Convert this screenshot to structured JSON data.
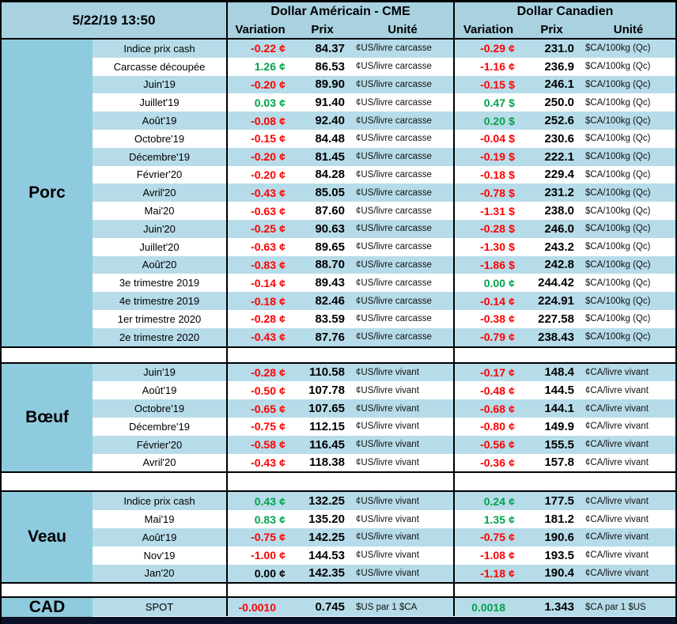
{
  "header": {
    "timestamp": "5/22/19 13:50",
    "us_title": "Dollar Américain - CME",
    "ca_title": "Dollar Canadien",
    "col_variation": "Variation",
    "col_prix": "Prix",
    "col_unite": "Unité"
  },
  "colors": {
    "negative": "#FF0000",
    "positive": "#00A24A",
    "neutral": "#000000",
    "header_bg": "#A9D2E1",
    "section_bg": "#8FCBDE",
    "stripe_bg": "#B7DCE9",
    "border": "#000000",
    "bottom_bar": "#0B1126"
  },
  "sections": [
    {
      "label": "Porc",
      "solid": false,
      "rows": [
        {
          "label": "Indice prix cash",
          "us": {
            "var": "-0.22",
            "sfx": "¢",
            "color": "negative",
            "prix": "84.37",
            "unit": "¢US/livre carcasse"
          },
          "ca": {
            "var": "-0.29",
            "sfx": "¢",
            "color": "negative",
            "prix": "231.0",
            "unit": "$CA/100kg (Qc)"
          }
        },
        {
          "label": "Carcasse découpée",
          "us": {
            "var": "1.26",
            "sfx": "¢",
            "color": "positive",
            "prix": "86.53",
            "unit": "¢US/livre carcasse"
          },
          "ca": {
            "var": "-1.16",
            "sfx": "¢",
            "color": "negative",
            "prix": "236.9",
            "unit": "$CA/100kg (Qc)"
          }
        },
        {
          "label": "Juin'19",
          "us": {
            "var": "-0.20",
            "sfx": "¢",
            "color": "negative",
            "prix": "89.90",
            "unit": "¢US/livre carcasse"
          },
          "ca": {
            "var": "-0.15",
            "sfx": "$",
            "color": "negative",
            "prix": "246.1",
            "unit": "$CA/100kg (Qc)"
          }
        },
        {
          "label": "Juillet'19",
          "us": {
            "var": "0.03",
            "sfx": "¢",
            "color": "positive",
            "prix": "91.40",
            "unit": "¢US/livre carcasse"
          },
          "ca": {
            "var": "0.47",
            "sfx": "$",
            "color": "positive",
            "prix": "250.0",
            "unit": "$CA/100kg (Qc)"
          }
        },
        {
          "label": "Août'19",
          "us": {
            "var": "-0.08",
            "sfx": "¢",
            "color": "negative",
            "prix": "92.40",
            "unit": "¢US/livre carcasse"
          },
          "ca": {
            "var": "0.20",
            "sfx": "$",
            "color": "positive",
            "prix": "252.6",
            "unit": "$CA/100kg (Qc)"
          }
        },
        {
          "label": "Octobre'19",
          "us": {
            "var": "-0.15",
            "sfx": "¢",
            "color": "negative",
            "prix": "84.48",
            "unit": "¢US/livre carcasse"
          },
          "ca": {
            "var": "-0.04",
            "sfx": "$",
            "color": "negative",
            "prix": "230.6",
            "unit": "$CA/100kg (Qc)"
          }
        },
        {
          "label": "Décembre'19",
          "us": {
            "var": "-0.20",
            "sfx": "¢",
            "color": "negative",
            "prix": "81.45",
            "unit": "¢US/livre carcasse"
          },
          "ca": {
            "var": "-0.19",
            "sfx": "$",
            "color": "negative",
            "prix": "222.1",
            "unit": "$CA/100kg (Qc)"
          }
        },
        {
          "label": "Février'20",
          "us": {
            "var": "-0.20",
            "sfx": "¢",
            "color": "negative",
            "prix": "84.28",
            "unit": "¢US/livre carcasse"
          },
          "ca": {
            "var": "-0.18",
            "sfx": "$",
            "color": "negative",
            "prix": "229.4",
            "unit": "$CA/100kg (Qc)"
          }
        },
        {
          "label": "Avril'20",
          "us": {
            "var": "-0.43",
            "sfx": "¢",
            "color": "negative",
            "prix": "85.05",
            "unit": "¢US/livre carcasse"
          },
          "ca": {
            "var": "-0.78",
            "sfx": "$",
            "color": "negative",
            "prix": "231.2",
            "unit": "$CA/100kg (Qc)"
          }
        },
        {
          "label": "Mai'20",
          "us": {
            "var": "-0.63",
            "sfx": "¢",
            "color": "negative",
            "prix": "87.60",
            "unit": "¢US/livre carcasse"
          },
          "ca": {
            "var": "-1.31",
            "sfx": "$",
            "color": "negative",
            "prix": "238.0",
            "unit": "$CA/100kg (Qc)"
          }
        },
        {
          "label": "Juin'20",
          "us": {
            "var": "-0.25",
            "sfx": "¢",
            "color": "negative",
            "prix": "90.63",
            "unit": "¢US/livre carcasse"
          },
          "ca": {
            "var": "-0.28",
            "sfx": "$",
            "color": "negative",
            "prix": "246.0",
            "unit": "$CA/100kg (Qc)"
          }
        },
        {
          "label": "Juillet'20",
          "us": {
            "var": "-0.63",
            "sfx": "¢",
            "color": "negative",
            "prix": "89.65",
            "unit": "¢US/livre carcasse"
          },
          "ca": {
            "var": "-1.30",
            "sfx": "$",
            "color": "negative",
            "prix": "243.2",
            "unit": "$CA/100kg (Qc)"
          }
        },
        {
          "label": "Août'20",
          "us": {
            "var": "-0.83",
            "sfx": "¢",
            "color": "negative",
            "prix": "88.70",
            "unit": "¢US/livre carcasse"
          },
          "ca": {
            "var": "-1.86",
            "sfx": "$",
            "color": "negative",
            "prix": "242.8",
            "unit": "$CA/100kg (Qc)"
          }
        },
        {
          "label": "3e trimestre 2019",
          "us": {
            "var": "-0.14",
            "sfx": "¢",
            "color": "negative",
            "prix": "89.43",
            "unit": "¢US/livre carcasse"
          },
          "ca": {
            "var": "0.00",
            "sfx": "¢",
            "color": "positive",
            "prix": "244.42",
            "unit": "$CA/100kg (Qc)"
          }
        },
        {
          "label": "4e trimestre 2019",
          "us": {
            "var": "-0.18",
            "sfx": "¢",
            "color": "negative",
            "prix": "82.46",
            "unit": "¢US/livre carcasse"
          },
          "ca": {
            "var": "-0.14",
            "sfx": "¢",
            "color": "negative",
            "prix": "224.91",
            "unit": "$CA/100kg (Qc)"
          }
        },
        {
          "label": "1er trimestre 2020",
          "us": {
            "var": "-0.28",
            "sfx": "¢",
            "color": "negative",
            "prix": "83.59",
            "unit": "¢US/livre carcasse"
          },
          "ca": {
            "var": "-0.38",
            "sfx": "¢",
            "color": "negative",
            "prix": "227.58",
            "unit": "$CA/100kg (Qc)"
          }
        },
        {
          "label": "2e trimestre 2020",
          "us": {
            "var": "-0.43",
            "sfx": "¢",
            "color": "negative",
            "prix": "87.76",
            "unit": "¢US/livre carcasse"
          },
          "ca": {
            "var": "-0.79",
            "sfx": "¢",
            "color": "negative",
            "prix": "238.43",
            "unit": "$CA/100kg (Qc)"
          }
        }
      ]
    },
    {
      "label": "Bœuf",
      "solid": false,
      "rows": [
        {
          "label": "Juin'19",
          "us": {
            "var": "-0.28",
            "sfx": "¢",
            "color": "negative",
            "prix": "110.58",
            "unit": "¢US/livre vivant"
          },
          "ca": {
            "var": "-0.17",
            "sfx": "¢",
            "color": "negative",
            "prix": "148.4",
            "unit": "¢CA/livre vivant"
          }
        },
        {
          "label": "Août'19",
          "us": {
            "var": "-0.50",
            "sfx": "¢",
            "color": "negative",
            "prix": "107.78",
            "unit": "¢US/livre vivant"
          },
          "ca": {
            "var": "-0.48",
            "sfx": "¢",
            "color": "negative",
            "prix": "144.5",
            "unit": "¢CA/livre vivant"
          }
        },
        {
          "label": "Octobre'19",
          "us": {
            "var": "-0.65",
            "sfx": "¢",
            "color": "negative",
            "prix": "107.65",
            "unit": "¢US/livre vivant"
          },
          "ca": {
            "var": "-0.68",
            "sfx": "¢",
            "color": "negative",
            "prix": "144.1",
            "unit": "¢CA/livre vivant"
          }
        },
        {
          "label": "Décembre'19",
          "us": {
            "var": "-0.75",
            "sfx": "¢",
            "color": "negative",
            "prix": "112.15",
            "unit": "¢US/livre vivant"
          },
          "ca": {
            "var": "-0.80",
            "sfx": "¢",
            "color": "negative",
            "prix": "149.9",
            "unit": "¢CA/livre vivant"
          }
        },
        {
          "label": "Février'20",
          "us": {
            "var": "-0.58",
            "sfx": "¢",
            "color": "negative",
            "prix": "116.45",
            "unit": "¢US/livre vivant"
          },
          "ca": {
            "var": "-0.56",
            "sfx": "¢",
            "color": "negative",
            "prix": "155.5",
            "unit": "¢CA/livre vivant"
          }
        },
        {
          "label": "Avril'20",
          "us": {
            "var": "-0.43",
            "sfx": "¢",
            "color": "negative",
            "prix": "118.38",
            "unit": "¢US/livre vivant"
          },
          "ca": {
            "var": "-0.36",
            "sfx": "¢",
            "color": "negative",
            "prix": "157.8",
            "unit": "¢CA/livre vivant"
          }
        }
      ]
    },
    {
      "label": "Veau",
      "solid": false,
      "rows": [
        {
          "label": "Indice prix cash",
          "us": {
            "var": "0.43",
            "sfx": "¢",
            "color": "positive",
            "prix": "132.25",
            "unit": "¢US/livre vivant"
          },
          "ca": {
            "var": "0.24",
            "sfx": "¢",
            "color": "positive",
            "prix": "177.5",
            "unit": "¢CA/livre vivant"
          }
        },
        {
          "label": "Mai'19",
          "us": {
            "var": "0.83",
            "sfx": "¢",
            "color": "positive",
            "prix": "135.20",
            "unit": "¢US/livre vivant"
          },
          "ca": {
            "var": "1.35",
            "sfx": "¢",
            "color": "positive",
            "prix": "181.2",
            "unit": "¢CA/livre vivant"
          }
        },
        {
          "label": "Août'19",
          "us": {
            "var": "-0.75",
            "sfx": "¢",
            "color": "negative",
            "prix": "142.25",
            "unit": "¢US/livre vivant"
          },
          "ca": {
            "var": "-0.75",
            "sfx": "¢",
            "color": "negative",
            "prix": "190.6",
            "unit": "¢CA/livre vivant"
          }
        },
        {
          "label": "Nov'19",
          "us": {
            "var": "-1.00",
            "sfx": "¢",
            "color": "negative",
            "prix": "144.53",
            "unit": "¢US/livre vivant"
          },
          "ca": {
            "var": "-1.08",
            "sfx": "¢",
            "color": "negative",
            "prix": "193.5",
            "unit": "¢CA/livre vivant"
          }
        },
        {
          "label": "Jan'20",
          "us": {
            "var": "0.00",
            "sfx": "¢",
            "color": "neutral",
            "prix": "142.35",
            "unit": "¢US/livre vivant"
          },
          "ca": {
            "var": "-1.18",
            "sfx": "¢",
            "color": "negative",
            "prix": "190.4",
            "unit": "¢CA/livre vivant"
          }
        }
      ]
    },
    {
      "label": "CAD",
      "solid": true,
      "rows": [
        {
          "label": "SPOT",
          "us": {
            "var": "-0.0010",
            "sfx": "",
            "color": "negative",
            "prix": "0.745",
            "unit": "$US par 1 $CA"
          },
          "ca": {
            "var": "0.0018",
            "sfx": "",
            "color": "positive",
            "prix": "1.343",
            "unit": "$CA par 1 $US"
          }
        }
      ]
    }
  ]
}
